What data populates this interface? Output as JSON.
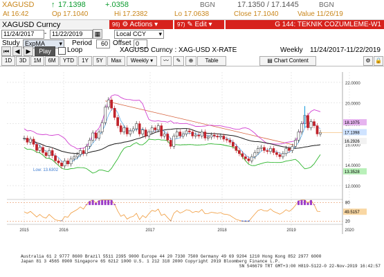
{
  "quote": {
    "ticker": "XAGUSD",
    "arrow": "↑",
    "last": "17.1398",
    "change": "+.0358",
    "bgn_label": "BGN",
    "bid_ask": "17.1350 / 17.1445",
    "bgn_label2": "BGN",
    "at": "At 16:42",
    "open": "Op 17.1040",
    "hi": "Hi 17.2382",
    "lo": "Lo 17.0638",
    "close": "Close 17.1040",
    "value": "Value 11/26/19"
  },
  "toolbar": {
    "security_name": "XAGUSD Curncy",
    "actions_num": "96)",
    "actions_label": "Actions",
    "edit_num": "97)",
    "edit_label": "Edit",
    "gtitle": "G 144: TEKNIK COZUMLEME-W1",
    "date_from": "11/24/2017",
    "date_to": "11/22/2019",
    "currency": "Local CCY",
    "study_label": "Study",
    "study_value": "ExpMA",
    "period_label": "Period",
    "period_value": "60",
    "offset_label": "Offset",
    "offset_value": "0",
    "play": "Play",
    "loop": "Loop",
    "rate_title": "XAGUSD Curncy : XAG-USD X-RATE",
    "freq_label": "Weekly",
    "range_label": "11/24/2017-11/22/2019"
  },
  "ranges": [
    "1D",
    "3D",
    "1M",
    "6M",
    "YTD",
    "1Y",
    "5Y",
    "Max"
  ],
  "frequency": "Weekly",
  "table_btn": "Table",
  "chart_content": "Chart Content",
  "chart_data": {
    "type": "candlestick",
    "years": [
      "2015",
      "2016",
      "2017",
      "2018",
      "2019",
      "2020"
    ],
    "price_ticks": [
      "22.0000",
      "20.0000",
      "18.0000",
      "16.0000",
      "14.0000",
      "12.0000"
    ],
    "ylim": [
      11.6,
      23
    ],
    "rsi_ticks": [
      "80",
      "20"
    ],
    "labels": {
      "upper_band": "18.1075",
      "last": "17.1398",
      "ema": "16.2926",
      "lower_band": "13.3528",
      "rsi": "49.5157",
      "low": "Low: 13.6302"
    },
    "closes": [
      16.6,
      16.2,
      16.5,
      16.0,
      15.4,
      15.7,
      15.2,
      14.9,
      15.4,
      14.9,
      14.4,
      14.2,
      13.9,
      14.4,
      14.1,
      14.6,
      14.8,
      15.0,
      15.4,
      15.1,
      15.8,
      16.4,
      17.1,
      16.6,
      17.2,
      18.1,
      19.6,
      20.3,
      19.5,
      18.6,
      17.8,
      17.2,
      17.6,
      17.0,
      17.3,
      17.5,
      18.0,
      17.0,
      17.4,
      16.8,
      17.2,
      17.6,
      17.4,
      17.8,
      16.8,
      17.0,
      16.4,
      15.8,
      16.8,
      17.2,
      16.8,
      17.0,
      17.3,
      17.2,
      16.8,
      16.9,
      16.8,
      17.2,
      16.6,
      16.7,
      16.9,
      16.8,
      16.7,
      16.8,
      16.5,
      16.4,
      16.2,
      15.8,
      15.4,
      15.1,
      14.8,
      14.6,
      14.4,
      14.8,
      15.2,
      15.6,
      15.7,
      15.4,
      15.3,
      15.6,
      15.2,
      15.0,
      14.8,
      15.1,
      15.6,
      15.4,
      15.8,
      16.4,
      17.2,
      18.0,
      18.8,
      17.6,
      18.2,
      17.8,
      17.0,
      17.14
    ]
  },
  "footer": {
    "line1": "Australia 61 2 9777 8600  Brazil 5511 2395 9000  Europe 44 20 7330 7500  Germany 49 69 9204 1210  Hong Kong 852 2977 6000",
    "line2": "Japan 81 3 4565 8900         Singapore 65 6212 1000        U.S. 1 212 318 2000              Copyright 2019 Bloomberg Finance L.P.",
    "line3": "SN 546679 TRT  GMT+3:00 H819-5122-0 22-Nov-2019 16:42:57"
  },
  "colors": {
    "candle_up": "#1f1f1f",
    "candle_down": "#c0232b",
    "pink_band": "#d13fd1",
    "green_band": "#2bb52b",
    "ema": "#1a1a1a",
    "short_ma": "#4aa3e6",
    "trend": "#d6603b",
    "rsi": "#f09a3a"
  }
}
